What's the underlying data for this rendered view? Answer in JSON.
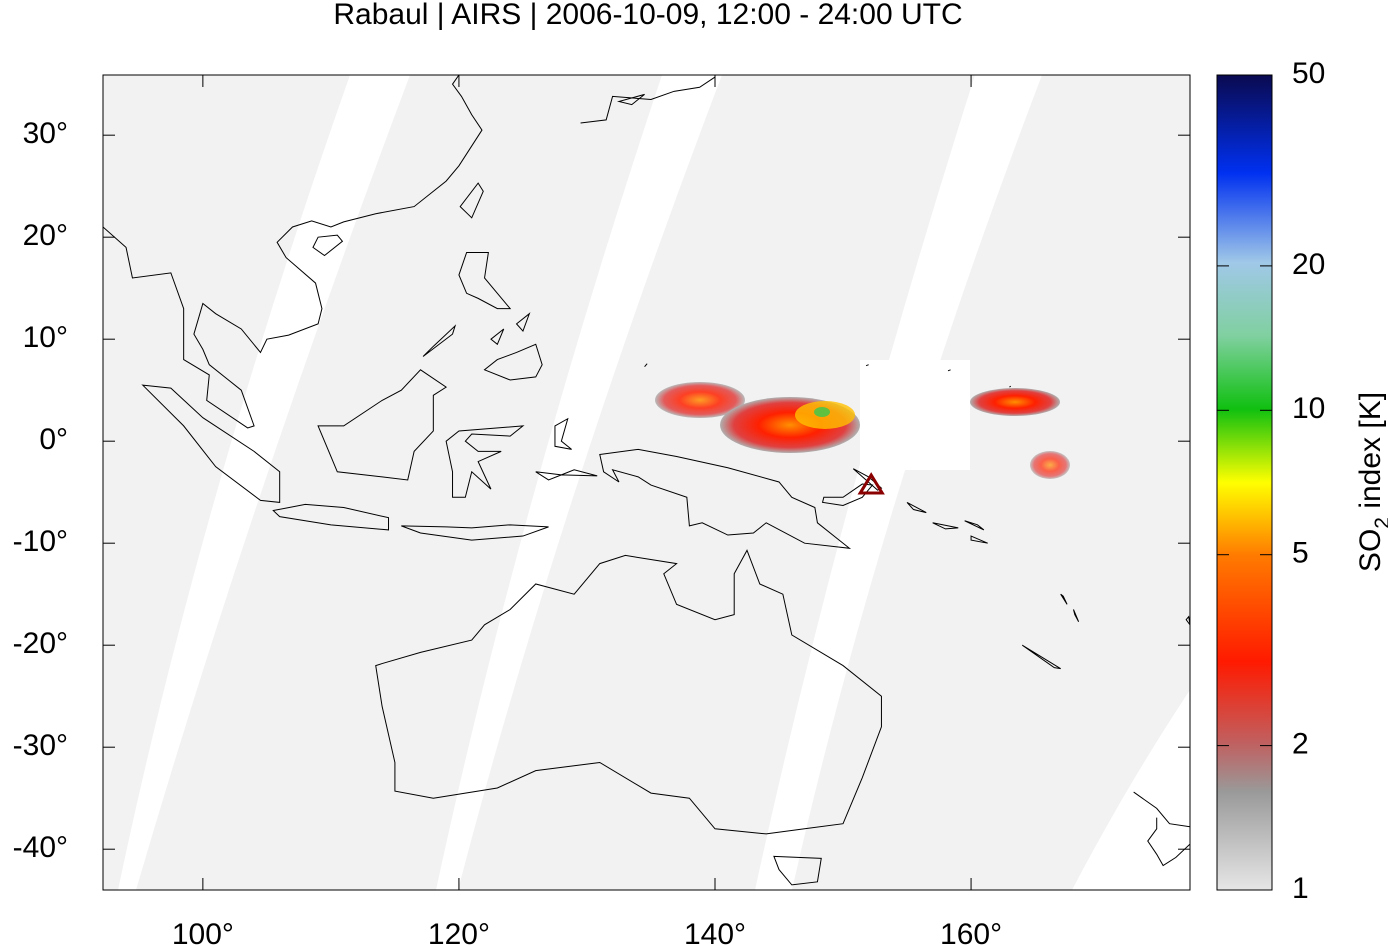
{
  "chart_data": {
    "type": "map",
    "title": "Rabaul | AIRS | 2006-10-09, 12:00 - 24:00 UTC",
    "xlim": [
      92.2,
      177.1
    ],
    "ylim": [
      -44,
      35.9
    ],
    "xticks": [
      {
        "value": 100,
        "label": "100°"
      },
      {
        "value": 120,
        "label": "120°"
      },
      {
        "value": 140,
        "label": "140°"
      },
      {
        "value": 160,
        "label": "160°"
      }
    ],
    "yticks": [
      {
        "value": 30,
        "label": "30°"
      },
      {
        "value": 20,
        "label": "20°"
      },
      {
        "value": 10,
        "label": "10°"
      },
      {
        "value": 0,
        "label": "0°"
      },
      {
        "value": -10,
        "label": "-10°"
      },
      {
        "value": -20,
        "label": "-20°"
      },
      {
        "value": -30,
        "label": "-30°"
      },
      {
        "value": -40,
        "label": "-40°"
      }
    ],
    "volcano": {
      "lon": 152.2,
      "lat": -4.3,
      "color": "#8b0000"
    },
    "colorbar": {
      "label": "SO",
      "label_sub": "2",
      "label_rest": " index [K]",
      "scale": "log",
      "lim": [
        1,
        50
      ],
      "ticks": [
        1,
        2,
        5,
        10,
        20,
        50
      ]
    }
  }
}
